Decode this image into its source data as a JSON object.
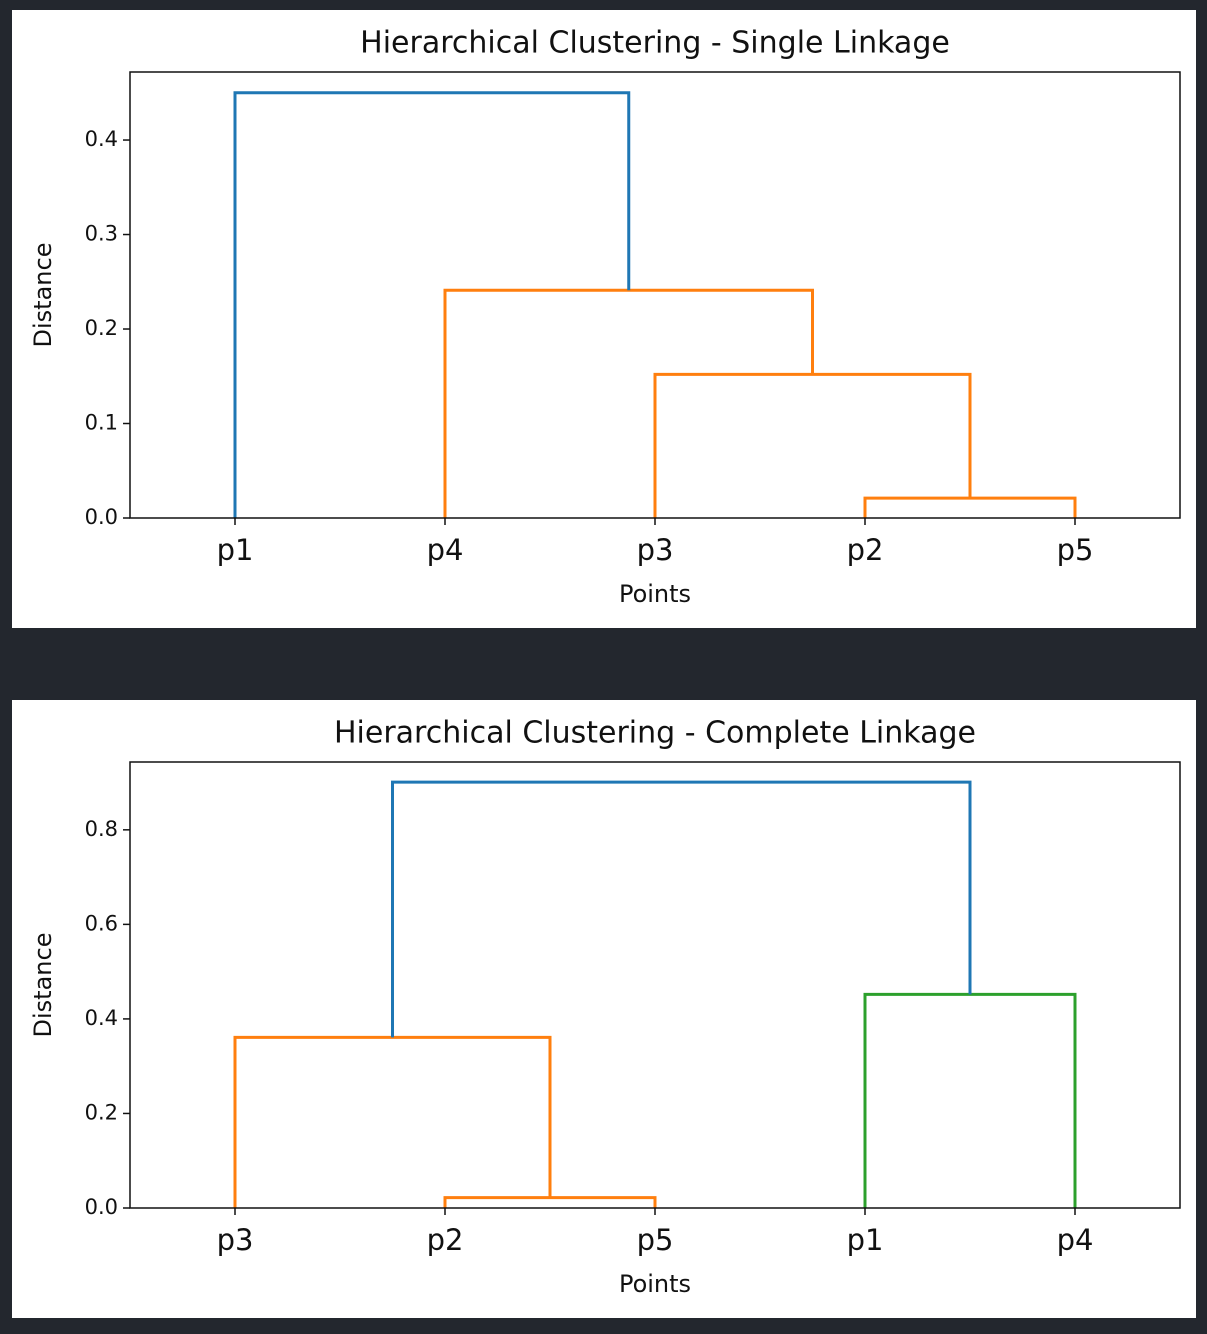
{
  "chart_data": [
    {
      "type": "dendrogram",
      "title": "Hierarchical Clustering - Single Linkage",
      "xlabel": "Points",
      "ylabel": "Distance",
      "categories": [
        "p1",
        "p4",
        "p3",
        "p2",
        "p5"
      ],
      "xlim": [
        0,
        50
      ],
      "ylim": [
        0,
        0.472
      ],
      "yticks": [
        {
          "value": 0,
          "label": "0.0"
        },
        0.1,
        0.2,
        0.3,
        0.4
      ],
      "links": [
        {
          "x": [
            35,
            35,
            45,
            45
          ],
          "y": [
            0,
            0.021,
            0.021,
            0
          ],
          "color": "#ff7f0e"
        },
        {
          "x": [
            25,
            25,
            40,
            40
          ],
          "y": [
            0,
            0.152,
            0.152,
            0.021
          ],
          "color": "#ff7f0e"
        },
        {
          "x": [
            15,
            15,
            32.5,
            32.5
          ],
          "y": [
            0,
            0.241,
            0.241,
            0.152
          ],
          "color": "#ff7f0e"
        },
        {
          "x": [
            5,
            5,
            23.75,
            23.75
          ],
          "y": [
            0,
            0.45,
            0.45,
            0.241
          ],
          "color": "#1f77b4"
        }
      ]
    },
    {
      "type": "dendrogram",
      "title": "Hierarchical Clustering - Complete Linkage",
      "xlabel": "Points",
      "ylabel": "Distance",
      "categories": [
        "p3",
        "p2",
        "p5",
        "p1",
        "p4"
      ],
      "xlim": [
        0,
        50
      ],
      "ylim": [
        0,
        0.9435
      ],
      "yticks": [
        {
          "value": 0,
          "label": "0.0"
        },
        0.2,
        0.4,
        0.6,
        0.8
      ],
      "links": [
        {
          "x": [
            15,
            15,
            25,
            25
          ],
          "y": [
            0,
            0.022,
            0.022,
            0
          ],
          "color": "#ff7f0e"
        },
        {
          "x": [
            5,
            5,
            20,
            20
          ],
          "y": [
            0,
            0.361,
            0.361,
            0.022
          ],
          "color": "#ff7f0e"
        },
        {
          "x": [
            35,
            35,
            45,
            45
          ],
          "y": [
            0,
            0.452,
            0.452,
            0
          ],
          "color": "#2ca02c"
        },
        {
          "x": [
            12.5,
            12.5,
            40,
            40
          ],
          "y": [
            0.361,
            0.901,
            0.901,
            0.452
          ],
          "color": "#1f77b4"
        }
      ]
    }
  ]
}
